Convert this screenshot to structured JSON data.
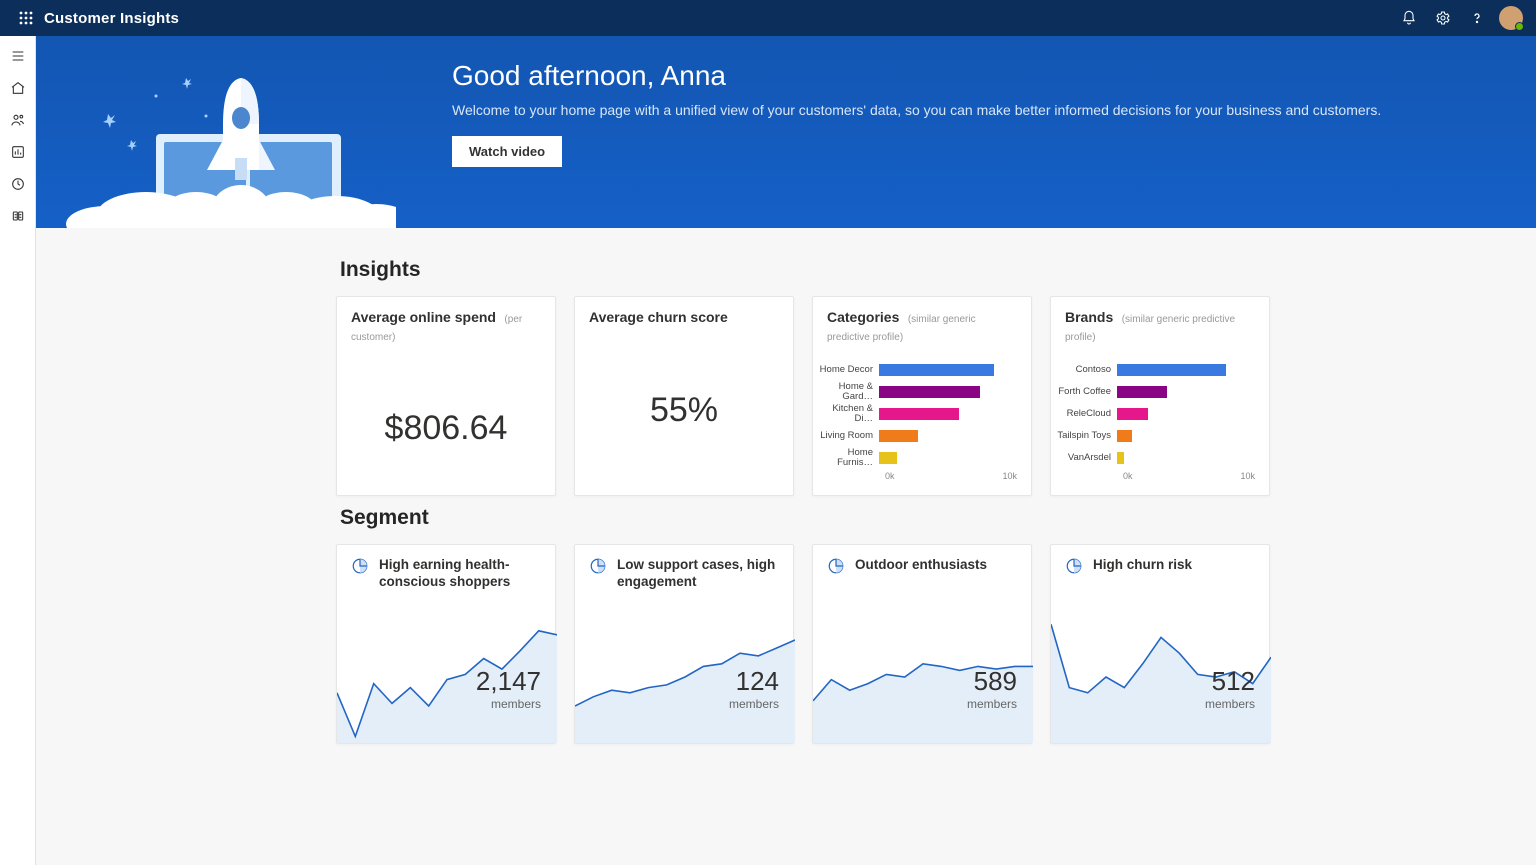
{
  "app": {
    "title": "Customer Insights"
  },
  "hero": {
    "greeting": "Good afternoon, Anna",
    "subtitle": "Welcome to your home page with a unified view of your customers' data, so you can make better informed decisions for your business and customers.",
    "button": "Watch video",
    "bg_gradient": [
      "#1356b2",
      "#1560c7"
    ]
  },
  "sections": {
    "insights": "Insights",
    "segment": "Segment"
  },
  "insights": {
    "spend": {
      "title": "Average online spend",
      "sub": "(per customer)",
      "value": "$806.64"
    },
    "churn": {
      "title": "Average churn score",
      "sub": "",
      "value": "55%"
    },
    "categories": {
      "title": "Categories",
      "sub": "(similar generic predictive profile)",
      "axis_min": "0k",
      "axis_max": "10k",
      "max": 10000,
      "bars": [
        {
          "label": "Home Decor",
          "value": 8200,
          "color": "#3a7ae0"
        },
        {
          "label": "Home & Gard…",
          "value": 7200,
          "color": "#8a0585"
        },
        {
          "label": "Kitchen & Di…",
          "value": 5700,
          "color": "#e6178b"
        },
        {
          "label": "Living Room",
          "value": 2800,
          "color": "#f07b1a"
        },
        {
          "label": "Home Furnis…",
          "value": 1300,
          "color": "#e6c21a"
        }
      ]
    },
    "brands": {
      "title": "Brands",
      "sub": "(similar generic predictive profile)",
      "axis_min": "0k",
      "axis_max": "10k",
      "max": 10000,
      "bars": [
        {
          "label": "Contoso",
          "value": 7800,
          "color": "#3a7ae0"
        },
        {
          "label": "Forth Coffee",
          "value": 3600,
          "color": "#8a0585"
        },
        {
          "label": "ReleCloud",
          "value": 2200,
          "color": "#e6178b"
        },
        {
          "label": "Tailspin Toys",
          "value": 1100,
          "color": "#f07b1a"
        },
        {
          "label": "VanArsdel",
          "value": 500,
          "color": "#e6c21a"
        }
      ]
    }
  },
  "segments": [
    {
      "title": "High earning health-conscious shoppers",
      "value": "2,147",
      "unit": "members",
      "line_color": "#2266c4",
      "fill_color": "#e4eef9",
      "points": [
        0.62,
        0.95,
        0.55,
        0.7,
        0.58,
        0.72,
        0.52,
        0.48,
        0.36,
        0.44,
        0.3,
        0.15,
        0.18
      ]
    },
    {
      "title": "Low support cases, high engagement",
      "value": "124",
      "unit": "members",
      "line_color": "#2266c4",
      "fill_color": "#e4eef9",
      "points": [
        0.72,
        0.65,
        0.6,
        0.62,
        0.58,
        0.56,
        0.5,
        0.42,
        0.4,
        0.32,
        0.34,
        0.28,
        0.22
      ]
    },
    {
      "title": "Outdoor enthusiasts",
      "value": "589",
      "unit": "members",
      "line_color": "#2266c4",
      "fill_color": "#e4eef9",
      "points": [
        0.68,
        0.52,
        0.6,
        0.55,
        0.48,
        0.5,
        0.4,
        0.42,
        0.45,
        0.42,
        0.44,
        0.42,
        0.42
      ]
    },
    {
      "title": "High churn risk",
      "value": "512",
      "unit": "members",
      "line_color": "#2266c4",
      "fill_color": "#e4eef9",
      "points": [
        0.1,
        0.58,
        0.62,
        0.5,
        0.58,
        0.4,
        0.2,
        0.32,
        0.48,
        0.5,
        0.46,
        0.55,
        0.35
      ]
    }
  ]
}
